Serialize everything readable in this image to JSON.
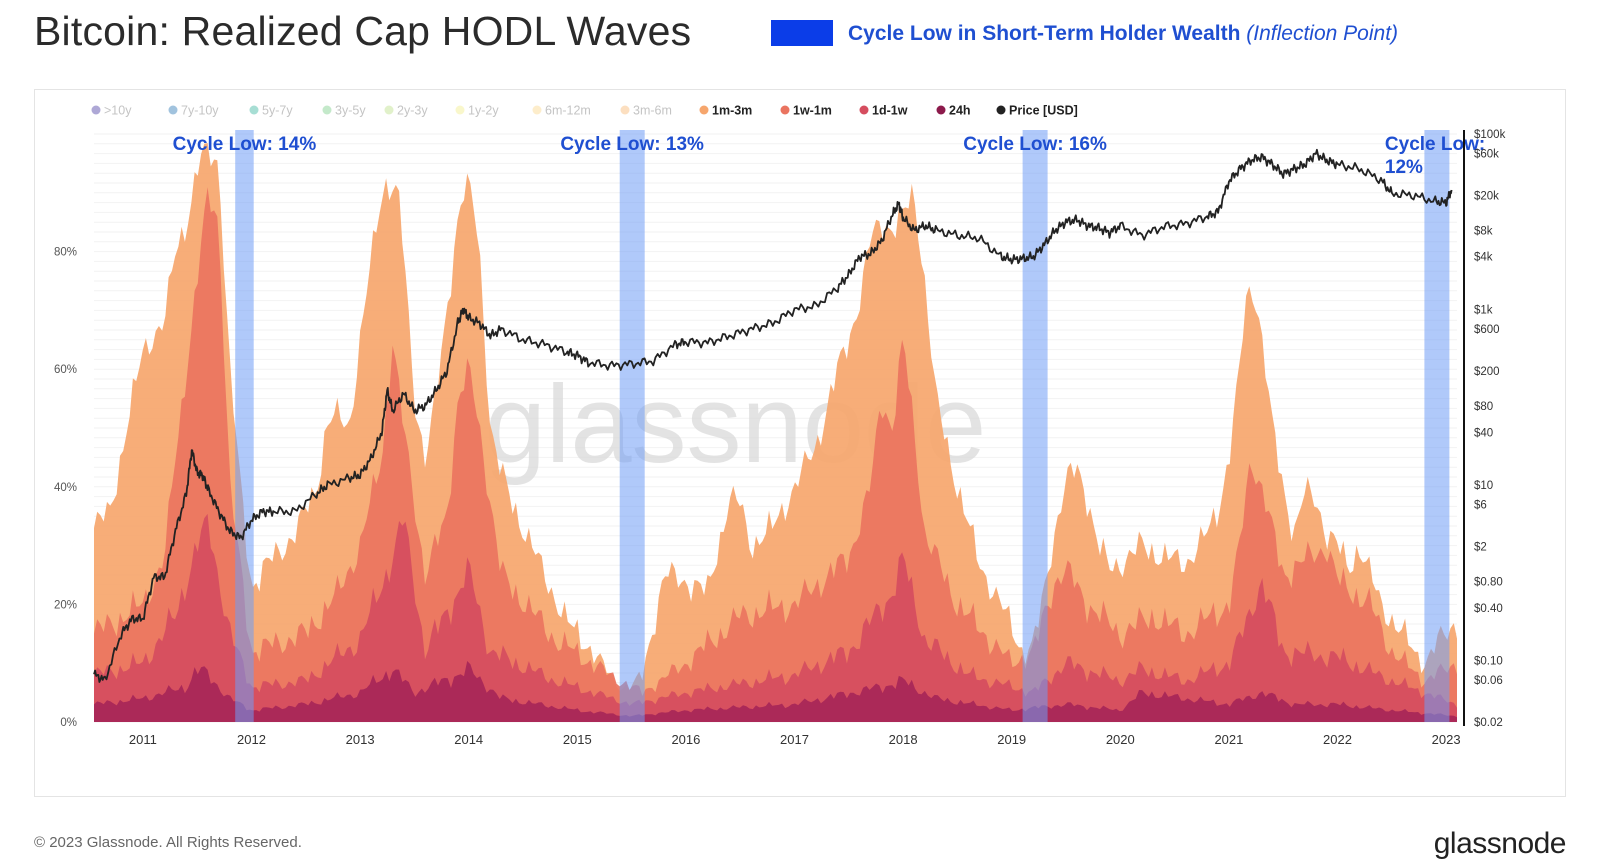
{
  "header": {
    "title": "Bitcoin: Realized Cap HODL Waves",
    "legend_bold": "Cycle Low in Short-Term Holder Wealth",
    "legend_italic": "(Inflection Point)",
    "legend_color": "#0b3de8",
    "legend_text_color": "#1f4fd1"
  },
  "footer": {
    "copyright": "© 2023 Glassnode. All Rights Reserved.",
    "logo": "glassnode"
  },
  "watermark": "glassnode",
  "chart_data": {
    "type": "area",
    "legend": [
      {
        "label": ">10y",
        "color": "#4b3fa3",
        "faded": true
      },
      {
        "label": "7y-10y",
        "color": "#2f79b5",
        "faded": true
      },
      {
        "label": "5y-7y",
        "color": "#3bb5a0",
        "faded": true
      },
      {
        "label": "3y-5y",
        "color": "#7ccf8a",
        "faded": true
      },
      {
        "label": "2y-3y",
        "color": "#bde08a",
        "faded": true
      },
      {
        "label": "1y-2y",
        "color": "#f2ee8c",
        "faded": true
      },
      {
        "label": "6m-12m",
        "color": "#fbd88c",
        "faded": true
      },
      {
        "label": "3m-6m",
        "color": "#f9b774",
        "faded": true
      },
      {
        "label": "1m-3m",
        "color": "#f6a66d",
        "faded": false
      },
      {
        "label": "1w-1m",
        "color": "#ea7460",
        "faded": false
      },
      {
        "label": "1d-1w",
        "color": "#d54d5f",
        "faded": false
      },
      {
        "label": "24h",
        "color": "#8c1a4b",
        "faded": false
      },
      {
        "label": "Price [USD]",
        "color": "#222222",
        "faded": false
      }
    ],
    "x_ticks": [
      "2011",
      "2012",
      "2013",
      "2014",
      "2015",
      "2016",
      "2017",
      "2018",
      "2019",
      "2020",
      "2021",
      "2022",
      "2023"
    ],
    "xlim": [
      2010.55,
      2023.1
    ],
    "y_left_ticks": [
      "0%",
      "20%",
      "40%",
      "60%",
      "80%"
    ],
    "y_left_values": [
      0,
      20,
      40,
      60,
      80
    ],
    "ylim_left": [
      0,
      100
    ],
    "y_right_ticks": [
      "$100k",
      "$60k",
      "$20k",
      "$8k",
      "$4k",
      "$1k",
      "$600",
      "$200",
      "$80",
      "$40",
      "$10",
      "$6",
      "$2",
      "$0.80",
      "$0.40",
      "$0.10",
      "$0.06",
      "$0.02"
    ],
    "y_right_values": [
      100000,
      60000,
      20000,
      8000,
      4000,
      1000,
      600,
      200,
      80,
      40,
      10,
      6,
      2,
      0.8,
      0.4,
      0.1,
      0.06,
      0.02
    ],
    "y_right_scale": "log",
    "ylim_right": [
      0.02,
      100000
    ],
    "series": [
      {
        "name": "1m-3m",
        "color": "#f6a66d",
        "x": [
          2010.55,
          2010.7,
          2010.85,
          2011.0,
          2011.1,
          2011.2,
          2011.3,
          2011.4,
          2011.45,
          2011.5,
          2011.55,
          2011.6,
          2011.7,
          2011.8,
          2011.9,
          2012.0,
          2012.2,
          2012.4,
          2012.6,
          2012.7,
          2012.8,
          2012.9,
          2013.0,
          2013.1,
          2013.2,
          2013.25,
          2013.3,
          2013.35,
          2013.4,
          2013.5,
          2013.6,
          2013.7,
          2013.8,
          2013.9,
          2013.95,
          2014.0,
          2014.05,
          2014.1,
          2014.2,
          2014.3,
          2014.5,
          2014.7,
          2014.9,
          2015.1,
          2015.3,
          2015.4,
          2015.5,
          2015.6,
          2015.8,
          2016.0,
          2016.2,
          2016.3,
          2016.4,
          2016.5,
          2016.6,
          2016.8,
          2017.0,
          2017.2,
          2017.4,
          2017.5,
          2017.6,
          2017.7,
          2017.8,
          2017.9,
          2018.0,
          2018.1,
          2018.2,
          2018.3,
          2018.5,
          2018.7,
          2018.9,
          2019.0,
          2019.1,
          2019.2,
          2019.3,
          2019.4,
          2019.5,
          2019.6,
          2019.7,
          2019.8,
          2019.9,
          2020.0,
          2020.2,
          2020.4,
          2020.6,
          2020.8,
          2020.9,
          2021.0,
          2021.1,
          2021.15,
          2021.2,
          2021.25,
          2021.3,
          2021.4,
          2021.5,
          2021.6,
          2021.7,
          2021.8,
          2021.9,
          2022.0,
          2022.1,
          2022.2,
          2022.4,
          2022.6,
          2022.7,
          2022.8,
          2022.9,
          2023.0,
          2023.1
        ],
        "values": [
          33,
          36,
          50,
          63,
          66,
          68,
          80,
          85,
          89,
          94,
          96,
          97,
          95,
          60,
          40,
          23,
          28,
          32,
          40,
          51,
          52,
          50,
          65,
          78,
          90,
          92,
          91,
          90,
          80,
          55,
          45,
          55,
          70,
          86,
          90,
          91,
          87,
          80,
          50,
          42,
          33,
          25,
          17,
          13,
          8,
          6,
          6,
          8,
          25,
          24,
          22,
          30,
          38,
          37,
          30,
          33,
          40,
          47,
          60,
          65,
          72,
          82,
          85,
          84,
          86,
          90,
          75,
          55,
          40,
          27,
          20,
          16,
          12,
          13,
          22,
          33,
          41,
          43,
          38,
          30,
          26,
          27,
          30,
          28,
          27,
          32,
          36,
          45,
          60,
          71,
          74,
          72,
          66,
          50,
          40,
          32,
          39,
          38,
          32,
          30,
          26,
          30,
          20,
          15,
          12,
          10,
          13,
          15,
          17
        ]
      },
      {
        "name": "1w-1m",
        "color": "#ea7460",
        "x": [
          2010.55,
          2011.0,
          2011.2,
          2011.3,
          2011.4,
          2011.5,
          2011.6,
          2011.7,
          2011.8,
          2012.0,
          2012.5,
          2012.8,
          2013.0,
          2013.2,
          2013.3,
          2013.4,
          2013.6,
          2013.8,
          2013.9,
          2014.0,
          2014.1,
          2014.3,
          2014.8,
          2015.3,
          2015.6,
          2016.0,
          2016.5,
          2017.0,
          2017.5,
          2017.7,
          2017.8,
          2017.9,
          2018.0,
          2018.1,
          2018.2,
          2018.5,
          2019.0,
          2019.2,
          2019.4,
          2019.5,
          2019.7,
          2020.0,
          2020.3,
          2020.6,
          2021.0,
          2021.1,
          2021.2,
          2021.3,
          2021.5,
          2021.9,
          2022.0,
          2022.3,
          2022.5,
          2022.8,
          2023.1
        ],
        "values": [
          15,
          20,
          28,
          45,
          60,
          75,
          90,
          85,
          40,
          12,
          15,
          22,
          30,
          45,
          65,
          50,
          25,
          35,
          55,
          60,
          50,
          25,
          14,
          8,
          5,
          10,
          18,
          20,
          28,
          40,
          55,
          50,
          65,
          50,
          32,
          20,
          10,
          12,
          24,
          26,
          20,
          15,
          18,
          15,
          20,
          30,
          45,
          40,
          25,
          30,
          24,
          20,
          12,
          7,
          10
        ]
      },
      {
        "name": "1d-1w",
        "color": "#d54d5f",
        "x": [
          2010.55,
          2011.0,
          2011.3,
          2011.5,
          2011.6,
          2011.8,
          2012.0,
          2012.5,
          2013.0,
          2013.3,
          2013.4,
          2013.6,
          2013.9,
          2014.0,
          2014.2,
          2014.8,
          2015.5,
          2016.0,
          2017.0,
          2017.5,
          2017.9,
          2018.0,
          2018.2,
          2018.6,
          2019.2,
          2019.5,
          2020.0,
          2020.2,
          2020.6,
          2021.0,
          2021.1,
          2021.3,
          2021.5,
          2022.0,
          2022.5,
          2023.1
        ],
        "values": [
          8,
          10,
          18,
          30,
          34,
          15,
          6,
          7,
          14,
          28,
          35,
          12,
          22,
          26,
          12,
          7,
          3,
          5,
          8,
          12,
          22,
          28,
          14,
          8,
          5,
          10,
          7,
          9,
          7,
          10,
          14,
          24,
          12,
          11,
          7,
          3
        ]
      },
      {
        "name": "24h",
        "color": "#a32257",
        "x": [
          2010.55,
          2011.0,
          2011.4,
          2011.5,
          2011.6,
          2011.8,
          2012.0,
          2012.5,
          2013.0,
          2013.3,
          2013.5,
          2013.9,
          2014.0,
          2014.3,
          2015.0,
          2015.5,
          2016.0,
          2017.0,
          2017.8,
          2018.0,
          2018.3,
          2019.0,
          2019.5,
          2020.0,
          2020.2,
          2021.0,
          2021.3,
          2021.6,
          2022.0,
          2022.5,
          2023.1
        ],
        "values": [
          3,
          4,
          6,
          9,
          8,
          4,
          2,
          3,
          5,
          9,
          5,
          8,
          9,
          4,
          2,
          1,
          2,
          3,
          6,
          7,
          4,
          2,
          3,
          2,
          5,
          3,
          5,
          3,
          3,
          2,
          1
        ]
      },
      {
        "name": "Price [USD]",
        "color": "#222222",
        "axis": "right",
        "x": [
          2010.55,
          2010.65,
          2010.8,
          2010.9,
          2011.0,
          2011.1,
          2011.2,
          2011.3,
          2011.4,
          2011.45,
          2011.5,
          2011.55,
          2011.6,
          2011.7,
          2011.8,
          2011.9,
          2012.0,
          2012.1,
          2012.2,
          2012.4,
          2012.6,
          2012.7,
          2012.9,
          2013.0,
          2013.1,
          2013.2,
          2013.25,
          2013.3,
          2013.4,
          2013.5,
          2013.6,
          2013.7,
          2013.8,
          2013.9,
          2013.95,
          2014.0,
          2014.1,
          2014.2,
          2014.3,
          2014.5,
          2014.7,
          2014.9,
          2015.0,
          2015.1,
          2015.3,
          2015.5,
          2015.7,
          2015.9,
          2016.0,
          2016.2,
          2016.4,
          2016.6,
          2016.8,
          2017.0,
          2017.2,
          2017.4,
          2017.5,
          2017.6,
          2017.7,
          2017.8,
          2017.9,
          2017.96,
          2018.0,
          2018.1,
          2018.2,
          2018.3,
          2018.5,
          2018.7,
          2018.9,
          2019.0,
          2019.1,
          2019.2,
          2019.3,
          2019.4,
          2019.5,
          2019.6,
          2019.7,
          2019.8,
          2019.9,
          2020.0,
          2020.2,
          2020.4,
          2020.6,
          2020.8,
          2020.9,
          2021.0,
          2021.1,
          2021.2,
          2021.3,
          2021.4,
          2021.5,
          2021.6,
          2021.7,
          2021.8,
          2021.9,
          2022.0,
          2022.2,
          2022.4,
          2022.5,
          2022.7,
          2022.9,
          2023.0,
          2023.05
        ],
        "values": [
          0.07,
          0.06,
          0.2,
          0.3,
          0.3,
          0.9,
          0.9,
          3,
          8,
          25,
          14,
          13,
          9,
          5,
          3,
          2.5,
          4,
          5,
          5,
          5,
          8,
          10,
          12,
          13,
          20,
          40,
          120,
          70,
          110,
          70,
          80,
          120,
          200,
          700,
          1000,
          800,
          700,
          500,
          600,
          450,
          400,
          330,
          300,
          250,
          230,
          240,
          260,
          400,
          430,
          420,
          500,
          600,
          700,
          1000,
          1100,
          1800,
          2500,
          4000,
          4300,
          6000,
          12000,
          16000,
          11000,
          8000,
          9000,
          8000,
          7000,
          6500,
          4000,
          3700,
          3800,
          4000,
          5500,
          8000,
          10000,
          10500,
          9000,
          8500,
          7500,
          9000,
          7000,
          8800,
          9500,
          11500,
          13000,
          29000,
          40000,
          50000,
          55000,
          45000,
          35000,
          40000,
          45000,
          60000,
          50000,
          45000,
          40000,
          30000,
          21000,
          20000,
          17000,
          16500,
          23000
        ]
      }
    ],
    "highlights": [
      {
        "x": [
          2011.85,
          2012.02
        ],
        "label": "Cycle Low: 14%"
      },
      {
        "x": [
          2015.39,
          2015.62
        ],
        "label": "Cycle Low: 13%"
      },
      {
        "x": [
          2019.1,
          2019.33
        ],
        "label": "Cycle Low: 16%"
      },
      {
        "x": [
          2022.8,
          2023.03
        ],
        "label": "Cycle Low: 12%"
      }
    ],
    "highlight_color": "#6f9cf6",
    "annotation_color": "#1f4fd1",
    "grid": true
  }
}
